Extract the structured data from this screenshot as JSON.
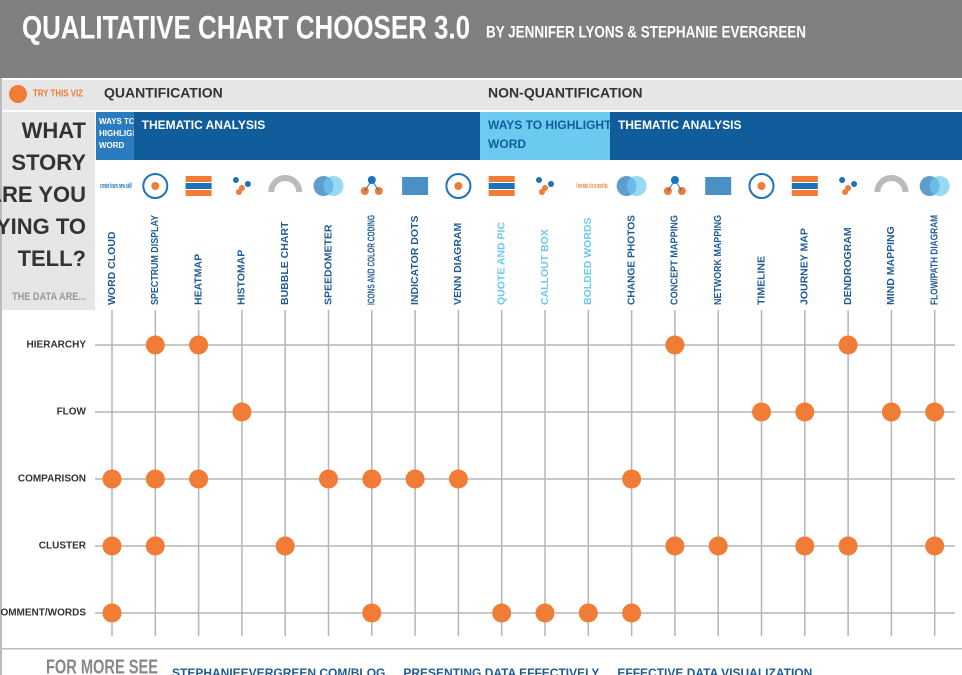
{
  "header": {
    "title": "QUALITATIVE CHART CHOOSER 3.0",
    "byline": "BY JENNIFER LYONS & STEPHANIE EVERGREEN"
  },
  "legend": "TRY THIS VIZ",
  "dot_color": "#f07c35",
  "question": [
    "WHAT",
    "STORY",
    "ARE YOU",
    "TRYING TO",
    "TELL?"
  ],
  "data_are": "THE DATA ARE...",
  "sections": [
    {
      "title": "QUANTIFICATION",
      "groups": [
        {
          "label": "WAYS TO HIGHLIGHT A WORD",
          "color": "#2b7bbf",
          "columns": [
            {
              "label": "WORD CLOUD",
              "icon_text": "create learn new skill"
            }
          ]
        },
        {
          "label": "THEMATIC ANALYSIS",
          "color": "#115c9b",
          "columns": [
            {
              "label": "SPECTRUM DISPLAY"
            },
            {
              "label": "HEATMAP"
            },
            {
              "label": "HISTOMAP"
            },
            {
              "label": "BUBBLE CHART"
            },
            {
              "label": "SPEEDOMETER"
            },
            {
              "label": "ICONS AND COLOR CODING"
            },
            {
              "label": "INDICATOR DOTS"
            },
            {
              "label": "VENN DIAGRAM"
            }
          ]
        }
      ]
    },
    {
      "title": "NON-QUANTIFICATION",
      "groups": [
        {
          "label": "WAYS TO HIGHLIGHT A WORD",
          "color": "#6cc9f0",
          "columns": [
            {
              "label": "QUOTE AND PIC"
            },
            {
              "label": "CALLOUT BOX"
            },
            {
              "label": "BOLDED WORDS",
              "icon_text": "I love data. It is so much fun."
            }
          ]
        },
        {
          "label": "THEMATIC ANALYSIS",
          "color": "#115c9b",
          "columns": [
            {
              "label": "CHANGE PHOTOS"
            },
            {
              "label": "CONCEPT MAPPING"
            },
            {
              "label": "NETWORK MAPPING"
            },
            {
              "label": "TIMELINE"
            },
            {
              "label": "JOURNEY MAP"
            },
            {
              "label": "DENDROGRAM"
            },
            {
              "label": "MIND MAPPING"
            },
            {
              "label": "FLOW/PATH DIAGRAM"
            }
          ]
        }
      ]
    }
  ],
  "rows": [
    {
      "label": "HIERARCHY",
      "cells": [
        false,
        true,
        true,
        false,
        false,
        false,
        false,
        false,
        false,
        false,
        false,
        false,
        false,
        true,
        false,
        false,
        false,
        true,
        false,
        false
      ]
    },
    {
      "label": "FLOW",
      "cells": [
        false,
        false,
        false,
        true,
        false,
        false,
        false,
        false,
        false,
        false,
        false,
        false,
        false,
        false,
        false,
        true,
        true,
        false,
        true,
        true
      ]
    },
    {
      "label": "COMPARISON",
      "cells": [
        true,
        true,
        true,
        false,
        false,
        true,
        true,
        true,
        true,
        false,
        false,
        false,
        true,
        false,
        false,
        false,
        false,
        false,
        false,
        false
      ]
    },
    {
      "label": "CLUSTER",
      "cells": [
        true,
        true,
        false,
        false,
        true,
        false,
        false,
        false,
        false,
        false,
        false,
        false,
        false,
        true,
        true,
        false,
        true,
        true,
        false,
        true
      ]
    },
    {
      "label": "COMMENT/WORDS",
      "cells": [
        true,
        false,
        false,
        false,
        false,
        false,
        true,
        false,
        false,
        true,
        true,
        true,
        true,
        false,
        false,
        false,
        false,
        false,
        false,
        false
      ]
    }
  ],
  "footer": {
    "lead": "FOR MORE SEE",
    "links": [
      "STEPHANIEEVERGREEN.COM/BLOG",
      "PRESENTING DATA EFFECTIVELY",
      "EFFECTIVE DATA VISUALIZATION"
    ]
  }
}
